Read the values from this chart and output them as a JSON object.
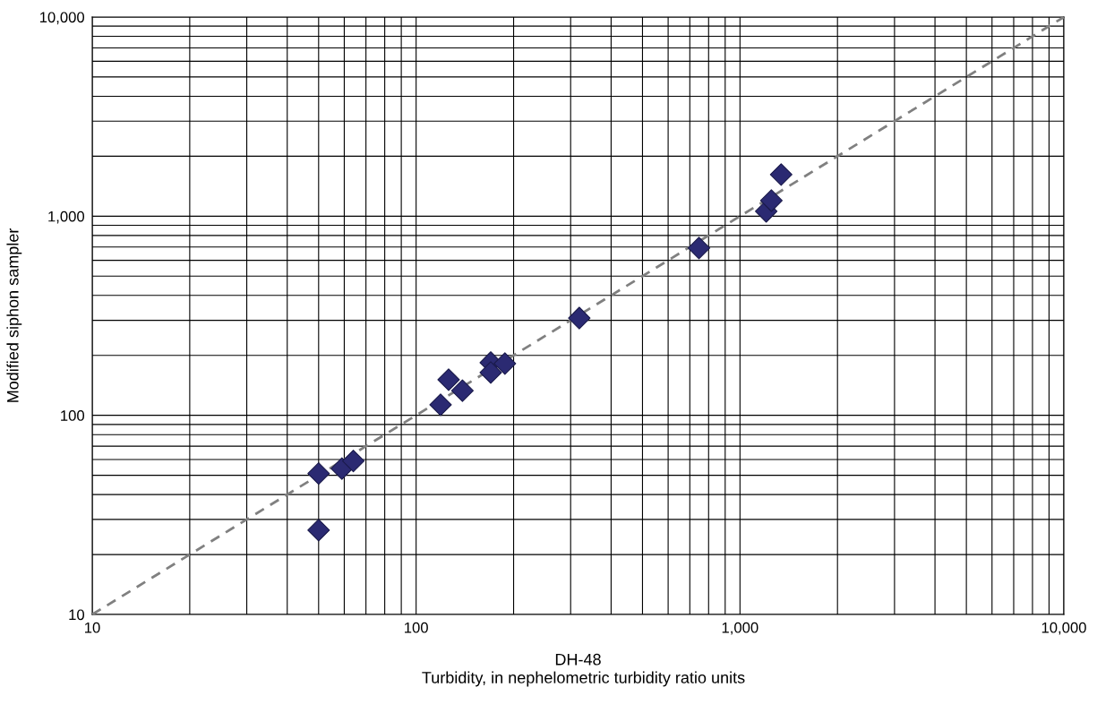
{
  "chart_data": {
    "type": "scatter",
    "xlabel": "DH-48",
    "ylabel": "Modified siphon sampler",
    "annotations": [
      "Turbidity, in nephelometric turbidity ratio units"
    ],
    "log": "xy",
    "grid": true,
    "xlim": [
      10,
      10000
    ],
    "ylim": [
      10,
      10000
    ],
    "xticks": [
      10,
      {
        "value": 20,
        "label": null
      },
      {
        "value": 30,
        "label": null
      },
      {
        "value": 40,
        "label": null
      },
      {
        "value": 50,
        "label": null
      },
      {
        "value": 60,
        "label": null
      },
      {
        "value": 70,
        "label": null
      },
      {
        "value": 80,
        "label": null
      },
      {
        "value": 90,
        "label": null
      },
      100,
      {
        "value": 200,
        "label": null
      },
      {
        "value": 300,
        "label": null
      },
      {
        "value": 400,
        "label": null
      },
      {
        "value": 500,
        "label": null
      },
      {
        "value": 600,
        "label": null
      },
      {
        "value": 700,
        "label": null
      },
      {
        "value": 800,
        "label": null
      },
      {
        "value": 900,
        "label": null
      },
      {
        "value": 1000,
        "label": "1,000"
      },
      {
        "value": 2000,
        "label": null
      },
      {
        "value": 3000,
        "label": null
      },
      {
        "value": 4000,
        "label": null
      },
      {
        "value": 5000,
        "label": null
      },
      {
        "value": 6000,
        "label": null
      },
      {
        "value": 7000,
        "label": null
      },
      {
        "value": 8000,
        "label": null
      },
      {
        "value": 9000,
        "label": null
      },
      {
        "value": 10000,
        "label": "10,000"
      }
    ],
    "yticks": [
      10,
      {
        "value": 20,
        "label": null
      },
      {
        "value": 30,
        "label": null
      },
      {
        "value": 40,
        "label": null
      },
      {
        "value": 50,
        "label": null
      },
      {
        "value": 60,
        "label": null
      },
      {
        "value": 70,
        "label": null
      },
      {
        "value": 80,
        "label": null
      },
      {
        "value": 90,
        "label": null
      },
      100,
      {
        "value": 200,
        "label": null
      },
      {
        "value": 300,
        "label": null
      },
      {
        "value": 400,
        "label": null
      },
      {
        "value": 500,
        "label": null
      },
      {
        "value": 600,
        "label": null
      },
      {
        "value": 700,
        "label": null
      },
      {
        "value": 800,
        "label": null
      },
      {
        "value": 900,
        "label": null
      },
      {
        "value": 1000,
        "label": "1,000"
      },
      {
        "value": 2000,
        "label": null
      },
      {
        "value": 3000,
        "label": null
      },
      {
        "value": 4000,
        "label": null
      },
      {
        "value": 5000,
        "label": null
      },
      {
        "value": 6000,
        "label": null
      },
      {
        "value": 7000,
        "label": null
      },
      {
        "value": 8000,
        "label": null
      },
      {
        "value": 9000,
        "label": null
      },
      {
        "value": 10000,
        "label": "10,000"
      }
    ],
    "series": [
      {
        "type": "line",
        "color": "#808080",
        "line_style": "dashed",
        "marker": "none",
        "x": [
          10,
          10000
        ],
        "values": [
          10,
          10000
        ]
      },
      {
        "color": "#2b2a72",
        "marker": "diamond",
        "x": [
          50,
          50,
          59,
          64,
          119,
          126,
          139,
          170,
          170,
          188,
          319,
          747,
          1205,
          1250,
          1340
        ],
        "values": [
          51,
          26.5,
          54,
          59,
          113,
          151,
          133,
          184,
          164,
          182,
          308,
          692,
          1057,
          1197,
          1619
        ]
      }
    ]
  }
}
